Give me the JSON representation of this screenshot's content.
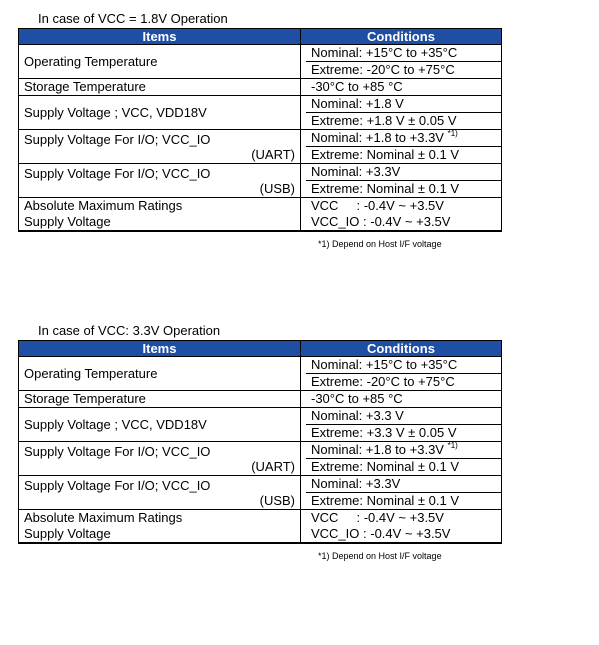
{
  "sections": [
    {
      "caption": "In case of VCC = 1.8V Operation",
      "header": {
        "items": "Items",
        "conditions": "Conditions"
      },
      "rows": [
        {
          "item": "Operating Temperature",
          "item2": "",
          "cond": [
            "Nominal: +15°C to +35°C",
            "Extreme: -20°C to +75°C"
          ]
        },
        {
          "item": "Storage Temperature",
          "item2": "",
          "cond": [
            "-30°C to +85 °C"
          ]
        },
        {
          "item": "Supply Voltage ; VCC, VDD18V",
          "item2": "",
          "cond": [
            "Nominal: +1.8 V",
            "Extreme: +1.8 V ± 0.05 V"
          ]
        },
        {
          "item": "Supply Voltage For I/O; VCC_IO",
          "item2": "(UART)",
          "cond": [
            "Nominal: +1.8 to +3.3V",
            "Extreme: Nominal ± 0.1 V"
          ],
          "cond_note": "*1)"
        },
        {
          "item": "Supply Voltage For I/O; VCC_IO",
          "item2": "(USB)",
          "cond": [
            "Nominal: +3.3V",
            "Extreme: Nominal ± 0.1 V"
          ]
        },
        {
          "item": "Absolute Maximum Ratings",
          "item2": "Supply Voltage",
          "cond": [
            "VCC     : -0.4V ~ +3.5V",
            "VCC_IO : -0.4V ~ +3.5V"
          ]
        }
      ],
      "footnote": "*1)  Depend on Host I/F voltage"
    },
    {
      "caption": "In case of VCC: 3.3V Operation",
      "header": {
        "items": "Items",
        "conditions": "Conditions"
      },
      "rows": [
        {
          "item": "Operating Temperature",
          "item2": "",
          "cond": [
            "Nominal: +15°C to +35°C",
            "Extreme: -20°C to +75°C"
          ]
        },
        {
          "item": "Storage Temperature",
          "item2": "",
          "cond": [
            "-30°C to +85 °C"
          ]
        },
        {
          "item": "Supply Voltage ; VCC, VDD18V",
          "item2": "",
          "cond": [
            "Nominal: +3.3 V",
            "Extreme: +3.3 V ± 0.05 V"
          ]
        },
        {
          "item": "Supply Voltage For I/O; VCC_IO",
          "item2": "(UART)",
          "cond": [
            "Nominal: +1.8 to +3.3V",
            "Extreme: Nominal ± 0.1 V"
          ],
          "cond_note": "*1)"
        },
        {
          "item": "Supply Voltage For I/O; VCC_IO",
          "item2": "(USB)",
          "cond": [
            "Nominal: +3.3V",
            "Extreme: Nominal ± 0.1 V"
          ]
        },
        {
          "item": "Absolute Maximum Ratings",
          "item2": "Supply Voltage",
          "cond": [
            "VCC     : -0.4V ~ +3.5V",
            "VCC_IO : -0.4V ~ +3.5V"
          ]
        }
      ],
      "footnote": "*1)  Depend on Host I/F voltage"
    }
  ],
  "colors": {
    "header_bg": "#1f4fa5",
    "header_text": "#ffffff"
  }
}
